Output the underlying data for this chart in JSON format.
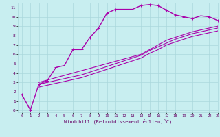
{
  "xlabel": "Windchill (Refroidissement éolien,°C)",
  "xlim": [
    -0.5,
    23
  ],
  "ylim": [
    -0.2,
    11.5
  ],
  "xticks": [
    0,
    1,
    2,
    3,
    4,
    5,
    6,
    7,
    8,
    9,
    10,
    11,
    12,
    13,
    14,
    15,
    16,
    17,
    18,
    19,
    20,
    21,
    22,
    23
  ],
  "yticks": [
    0,
    1,
    2,
    3,
    4,
    5,
    6,
    7,
    8,
    9,
    10,
    11
  ],
  "bg_color": "#c8eef0",
  "grid_color": "#aad8dc",
  "line_color": "#aa00aa",
  "lines": [
    {
      "x": [
        0,
        1,
        2,
        3,
        4,
        5,
        6,
        7,
        8,
        9,
        10,
        11,
        12,
        13,
        14,
        15,
        16,
        17,
        18,
        19,
        20,
        21,
        22,
        23
      ],
      "y": [
        1.7,
        0.05,
        2.8,
        3.2,
        4.6,
        4.8,
        6.5,
        6.5,
        7.8,
        8.8,
        10.4,
        10.8,
        10.8,
        10.8,
        11.2,
        11.3,
        11.2,
        10.7,
        10.2,
        10.0,
        9.8,
        10.1,
        10.0,
        9.6
      ],
      "has_marker": true,
      "lw": 1.0,
      "ms": 2.5
    },
    {
      "x": [
        2,
        3,
        4,
        5,
        6,
        7,
        8,
        9,
        10,
        11,
        12,
        13,
        14,
        15,
        16,
        17,
        18,
        19,
        20,
        21,
        22,
        23
      ],
      "y": [
        3.0,
        3.25,
        3.5,
        3.75,
        4.0,
        4.25,
        4.5,
        4.75,
        5.0,
        5.25,
        5.5,
        5.75,
        6.0,
        6.5,
        7.0,
        7.5,
        7.8,
        8.1,
        8.4,
        8.6,
        8.8,
        9.0
      ],
      "has_marker": false,
      "lw": 0.8,
      "ms": 0
    },
    {
      "x": [
        2,
        3,
        4,
        5,
        6,
        7,
        8,
        9,
        10,
        11,
        12,
        13,
        14,
        15,
        16,
        17,
        18,
        19,
        20,
        21,
        22,
        23
      ],
      "y": [
        2.8,
        3.0,
        3.2,
        3.4,
        3.6,
        3.8,
        4.1,
        4.4,
        4.7,
        5.0,
        5.3,
        5.6,
        5.9,
        6.4,
        6.8,
        7.2,
        7.6,
        7.9,
        8.2,
        8.4,
        8.6,
        8.8
      ],
      "has_marker": false,
      "lw": 0.8,
      "ms": 0
    },
    {
      "x": [
        2,
        3,
        4,
        5,
        6,
        7,
        8,
        9,
        10,
        11,
        12,
        13,
        14,
        15,
        16,
        17,
        18,
        19,
        20,
        21,
        22,
        23
      ],
      "y": [
        2.5,
        2.7,
        2.9,
        3.1,
        3.3,
        3.5,
        3.8,
        4.1,
        4.4,
        4.7,
        5.0,
        5.3,
        5.6,
        6.1,
        6.5,
        7.0,
        7.3,
        7.6,
        7.9,
        8.1,
        8.3,
        8.5
      ],
      "has_marker": false,
      "lw": 0.8,
      "ms": 0
    }
  ]
}
